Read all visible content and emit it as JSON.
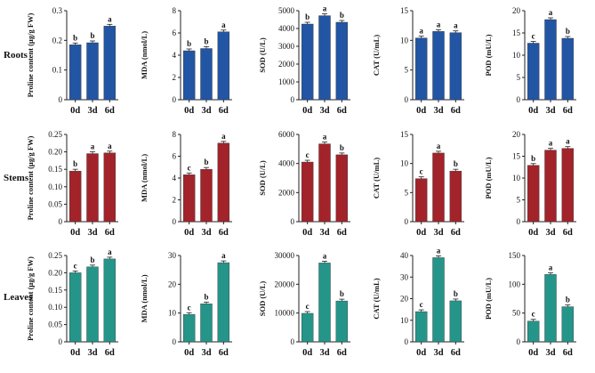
{
  "figure": {
    "row_labels": [
      "Roots",
      "Stems",
      "Leaves"
    ],
    "row_colors": [
      "#2256a4",
      "#a3232a",
      "#25958a"
    ]
  },
  "chart_data": [
    {
      "type": "bar",
      "row": "Roots",
      "categories": [
        "0d",
        "3d",
        "6d"
      ],
      "values": [
        0.185,
        0.192,
        0.248
      ],
      "letters": [
        "b",
        "b",
        "a"
      ],
      "ylabel": "Proline content (µg/g FW)",
      "ylim": [
        0,
        0.3
      ],
      "ticks": [
        0,
        0.1,
        0.2,
        0.3
      ],
      "tick_labels": [
        "0",
        "0.1",
        "0.2",
        "0.3"
      ]
    },
    {
      "type": "bar",
      "row": "Roots",
      "categories": [
        "0d",
        "3d",
        "6d"
      ],
      "values": [
        4.4,
        4.6,
        6.1
      ],
      "letters": [
        "b",
        "b",
        "a"
      ],
      "ylabel": "MDA (nmol/L)",
      "ylim": [
        0,
        8
      ],
      "ticks": [
        0,
        2,
        4,
        6,
        8
      ],
      "tick_labels": [
        "0",
        "2",
        "4",
        "6",
        "8"
      ]
    },
    {
      "type": "bar",
      "row": "Roots",
      "categories": [
        "0d",
        "3d",
        "6d"
      ],
      "values": [
        4250,
        4720,
        4350
      ],
      "letters": [
        "b",
        "a",
        "b"
      ],
      "ylabel": "SOD (U/L)",
      "ylim": [
        0,
        5000
      ],
      "ticks": [
        0,
        1000,
        2000,
        3000,
        4000,
        5000
      ],
      "tick_labels": [
        "0",
        "1000",
        "2000",
        "3000",
        "4000",
        "5000"
      ]
    },
    {
      "type": "bar",
      "row": "Roots",
      "categories": [
        "0d",
        "3d",
        "6d"
      ],
      "values": [
        10.4,
        11.5,
        11.3
      ],
      "letters": [
        "a",
        "a",
        "a"
      ],
      "ylabel": "CAT (U/mL)",
      "ylim": [
        0,
        15
      ],
      "ticks": [
        0,
        5,
        10,
        15
      ],
      "tick_labels": [
        "0",
        "5",
        "10",
        "15"
      ]
    },
    {
      "type": "bar",
      "row": "Roots",
      "categories": [
        "0d",
        "3d",
        "6d"
      ],
      "values": [
        12.7,
        18.0,
        13.8
      ],
      "letters": [
        "c",
        "a",
        "b"
      ],
      "ylabel": "POD (mU/L)",
      "ylim": [
        0,
        20
      ],
      "ticks": [
        0,
        5,
        10,
        15,
        20
      ],
      "tick_labels": [
        "0",
        "5",
        "10",
        "15",
        "20"
      ]
    },
    {
      "type": "bar",
      "row": "Stems",
      "categories": [
        "0d",
        "3d",
        "6d"
      ],
      "values": [
        0.145,
        0.195,
        0.197
      ],
      "letters": [
        "b",
        "a",
        "a"
      ],
      "ylabel": "Proline content (µg/g FW)",
      "ylim": [
        0,
        0.25
      ],
      "ticks": [
        0,
        0.05,
        0.1,
        0.15,
        0.2,
        0.25
      ],
      "tick_labels": [
        "0",
        "0.05",
        "0.10",
        "0.15",
        "0.20",
        "0.25"
      ]
    },
    {
      "type": "bar",
      "row": "Stems",
      "categories": [
        "0d",
        "3d",
        "6d"
      ],
      "values": [
        4.3,
        4.8,
        7.2
      ],
      "letters": [
        "c",
        "b",
        "a"
      ],
      "ylabel": "MDA (nmol/L)",
      "ylim": [
        0,
        8
      ],
      "ticks": [
        0,
        2,
        4,
        6,
        8
      ],
      "tick_labels": [
        "0",
        "2",
        "4",
        "6",
        "8"
      ]
    },
    {
      "type": "bar",
      "row": "Stems",
      "categories": [
        "0d",
        "3d",
        "6d"
      ],
      "values": [
        4100,
        5350,
        4600
      ],
      "letters": [
        "c",
        "a",
        "b"
      ],
      "ylabel": "SOD (U/L)",
      "ylim": [
        0,
        6000
      ],
      "ticks": [
        0,
        2000,
        4000,
        6000
      ],
      "tick_labels": [
        "0",
        "2000",
        "4000",
        "6000"
      ]
    },
    {
      "type": "bar",
      "row": "Stems",
      "categories": [
        "0d",
        "3d",
        "6d"
      ],
      "values": [
        7.4,
        11.8,
        8.7
      ],
      "letters": [
        "c",
        "a",
        "b"
      ],
      "ylabel": "CAT (U/mL)",
      "ylim": [
        0,
        15
      ],
      "ticks": [
        0,
        5,
        10,
        15
      ],
      "tick_labels": [
        "0",
        "5",
        "10",
        "15"
      ]
    },
    {
      "type": "bar",
      "row": "Stems",
      "categories": [
        "0d",
        "3d",
        "6d"
      ],
      "values": [
        12.9,
        16.4,
        16.8
      ],
      "letters": [
        "b",
        "a",
        "a"
      ],
      "ylabel": "POD (mU/L)",
      "ylim": [
        0,
        20
      ],
      "ticks": [
        0,
        5,
        10,
        15,
        20
      ],
      "tick_labels": [
        "0",
        "5",
        "10",
        "15",
        "20"
      ]
    },
    {
      "type": "bar",
      "row": "Leaves",
      "categories": [
        "0d",
        "3d",
        "6d"
      ],
      "values": [
        0.2,
        0.217,
        0.24
      ],
      "letters": [
        "c",
        "b",
        "a"
      ],
      "ylabel": "Proline content (µg/g FW)",
      "ylim": [
        0,
        0.25
      ],
      "ticks": [
        0,
        0.05,
        0.1,
        0.15,
        0.2,
        0.25
      ],
      "tick_labels": [
        "0",
        "0.05",
        "0.10",
        "0.15",
        "0.20",
        "0.25"
      ]
    },
    {
      "type": "bar",
      "row": "Leaves",
      "categories": [
        "0d",
        "3d",
        "6d"
      ],
      "values": [
        9.5,
        13.2,
        27.5
      ],
      "letters": [
        "c",
        "b",
        "a"
      ],
      "ylabel": "MDA (nmol/L)",
      "ylim": [
        0,
        30
      ],
      "ticks": [
        0,
        10,
        20,
        30
      ],
      "tick_labels": [
        "0",
        "10",
        "20",
        "30"
      ]
    },
    {
      "type": "bar",
      "row": "Leaves",
      "categories": [
        "0d",
        "3d",
        "6d"
      ],
      "values": [
        9900,
        27400,
        14200
      ],
      "letters": [
        "c",
        "a",
        "b"
      ],
      "ylabel": "SOD (U/L)",
      "ylim": [
        0,
        30000
      ],
      "ticks": [
        0,
        10000,
        20000,
        30000
      ],
      "tick_labels": [
        "0",
        "10000",
        "20000",
        "30000"
      ]
    },
    {
      "type": "bar",
      "row": "Leaves",
      "categories": [
        "0d",
        "3d",
        "6d"
      ],
      "values": [
        14,
        39,
        19
      ],
      "letters": [
        "c",
        "a",
        "b"
      ],
      "ylabel": "CAT (U/mL)",
      "ylim": [
        0,
        40
      ],
      "ticks": [
        0,
        10,
        20,
        30,
        40
      ],
      "tick_labels": [
        "0",
        "10",
        "20",
        "30",
        "40"
      ]
    },
    {
      "type": "bar",
      "row": "Leaves",
      "categories": [
        "0d",
        "3d",
        "6d"
      ],
      "values": [
        36,
        117,
        61
      ],
      "letters": [
        "c",
        "a",
        "b"
      ],
      "ylabel": "POD (mU/L)",
      "ylim": [
        0,
        150
      ],
      "ticks": [
        0,
        50,
        100,
        150
      ],
      "tick_labels": [
        "0",
        "50",
        "100",
        "150"
      ]
    }
  ]
}
